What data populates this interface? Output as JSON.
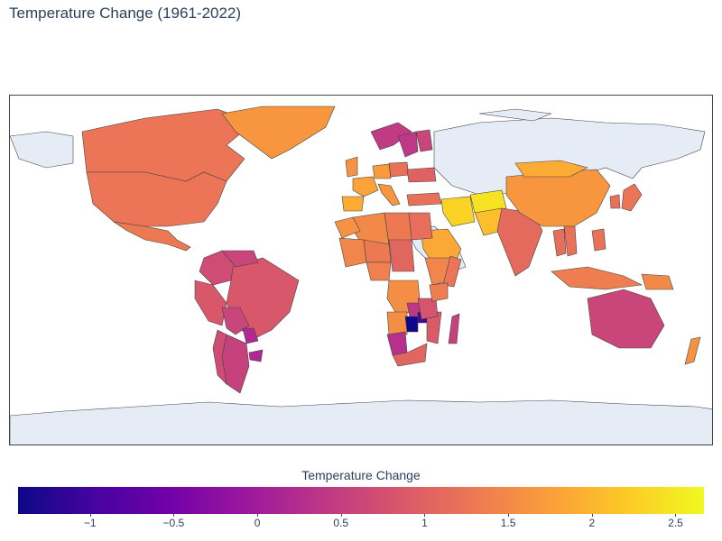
{
  "title": "Temperature Change (1961-2022)",
  "colorbar": {
    "title": "Temperature Change",
    "min": -1.43,
    "max": 2.67,
    "ticks": [
      {
        "value": -1,
        "label": "−1"
      },
      {
        "value": -0.5,
        "label": "−0.5"
      },
      {
        "value": 0,
        "label": "0"
      },
      {
        "value": 0.5,
        "label": "0.5"
      },
      {
        "value": 1,
        "label": "1"
      },
      {
        "value": 1.5,
        "label": "1.5"
      },
      {
        "value": 2,
        "label": "2"
      },
      {
        "value": 2.5,
        "label": "2.5"
      }
    ],
    "colorscale": [
      "#0d0887",
      "#46039f",
      "#7201a8",
      "#9c179e",
      "#bd3786",
      "#d8576b",
      "#ed7953",
      "#fb9f3a",
      "#fdca26",
      "#f0f921"
    ]
  },
  "map": {
    "land_color": "#e5ecf6",
    "border_color": "#444444"
  },
  "chart_data": {
    "type": "choropleth",
    "title": "Temperature Change (1961-2022)",
    "colorbar_title": "Temperature Change",
    "regions": [
      {
        "name": "Canada",
        "value": 1.25
      },
      {
        "name": "United States",
        "value": 1.25
      },
      {
        "name": "Mexico",
        "value": 1.3
      },
      {
        "name": "Greenland",
        "value": 1.65
      },
      {
        "name": "Brazil",
        "value": 0.85
      },
      {
        "name": "Argentina",
        "value": 0.55
      },
      {
        "name": "Chile",
        "value": 0.7
      },
      {
        "name": "Peru",
        "value": 0.85
      },
      {
        "name": "Colombia",
        "value": 0.7
      },
      {
        "name": "Venezuela",
        "value": 0.6
      },
      {
        "name": "Bolivia",
        "value": 0.6
      },
      {
        "name": "Paraguay",
        "value": 0.2
      },
      {
        "name": "Uruguay",
        "value": 0.2
      },
      {
        "name": "Norway",
        "value": 0.45
      },
      {
        "name": "Sweden",
        "value": 0.4
      },
      {
        "name": "Finland",
        "value": 0.6
      },
      {
        "name": "United Kingdom",
        "value": 1.6
      },
      {
        "name": "France",
        "value": 1.8
      },
      {
        "name": "Spain",
        "value": 1.9
      },
      {
        "name": "Germany",
        "value": 1.7
      },
      {
        "name": "Italy",
        "value": 1.65
      },
      {
        "name": "Poland",
        "value": 1.2
      },
      {
        "name": "Ukraine",
        "value": 1.0
      },
      {
        "name": "Turkey",
        "value": 1.2
      },
      {
        "name": "Iran",
        "value": 2.3
      },
      {
        "name": "Afghanistan",
        "value": 2.45
      },
      {
        "name": "Pakistan",
        "value": 2.1
      },
      {
        "name": "India",
        "value": 1.1
      },
      {
        "name": "China",
        "value": 1.65
      },
      {
        "name": "Mongolia",
        "value": 1.9
      },
      {
        "name": "Japan",
        "value": 1.25
      },
      {
        "name": "South Korea",
        "value": 1.2
      },
      {
        "name": "Saudi Arabia",
        "value": 1.85
      },
      {
        "name": "Egypt",
        "value": 1.15
      },
      {
        "name": "Algeria",
        "value": 1.5
      },
      {
        "name": "Libya",
        "value": 1.3
      },
      {
        "name": "Morocco",
        "value": 1.6
      },
      {
        "name": "Mali",
        "value": 1.45
      },
      {
        "name": "Niger",
        "value": 1.3
      },
      {
        "name": "Nigeria",
        "value": 1.4
      },
      {
        "name": "Chad",
        "value": 1.05
      },
      {
        "name": "Ethiopia",
        "value": 1.45
      },
      {
        "name": "Somalia",
        "value": 1.25
      },
      {
        "name": "DR Congo",
        "value": 1.55
      },
      {
        "name": "Angola",
        "value": 1.55
      },
      {
        "name": "Zambia",
        "value": 0.4
      },
      {
        "name": "Zimbabwe",
        "value": -1.0
      },
      {
        "name": "Botswana",
        "value": -1.4
      },
      {
        "name": "Namibia",
        "value": 0.3
      },
      {
        "name": "South Africa",
        "value": 1.05
      },
      {
        "name": "Mozambique",
        "value": 0.9
      },
      {
        "name": "Madagascar",
        "value": 0.55
      },
      {
        "name": "Tanzania",
        "value": 0.8
      },
      {
        "name": "Kenya",
        "value": 1.35
      },
      {
        "name": "Indonesia",
        "value": 1.35
      },
      {
        "name": "Philippines",
        "value": 1.2
      },
      {
        "name": "Thailand",
        "value": 1.15
      },
      {
        "name": "Vietnam",
        "value": 1.2
      },
      {
        "name": "Papua New Guinea",
        "value": 1.5
      },
      {
        "name": "Australia",
        "value": 0.6
      },
      {
        "name": "New Zealand",
        "value": 1.6
      }
    ]
  }
}
